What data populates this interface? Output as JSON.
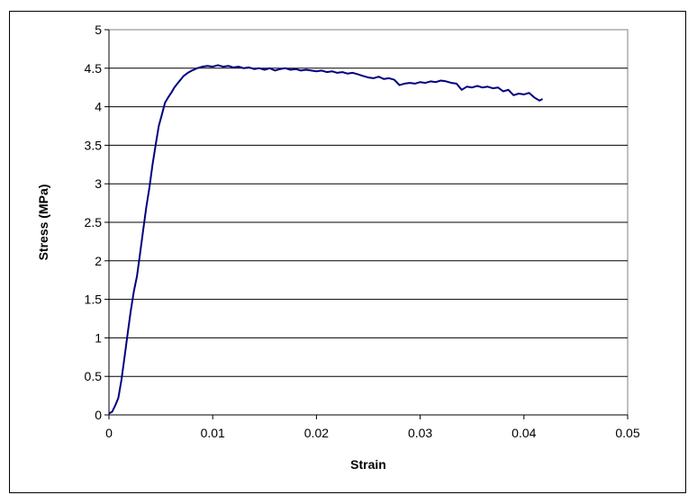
{
  "chart_data": {
    "type": "line",
    "title": "",
    "xlabel": "Strain",
    "ylabel": "Stress (MPa)",
    "xlim": [
      0,
      0.05
    ],
    "ylim": [
      0,
      5
    ],
    "xticks": [
      0,
      0.01,
      0.02,
      0.03,
      0.04,
      0.05
    ],
    "xtick_labels": [
      "0",
      "0.01",
      "0.02",
      "0.03",
      "0.04",
      "0.05"
    ],
    "yticks": [
      0,
      0.5,
      1,
      1.5,
      2,
      2.5,
      3,
      3.5,
      4,
      4.5,
      5
    ],
    "ytick_labels": [
      "0",
      "0.5",
      "1",
      "1.5",
      "2",
      "2.5",
      "3",
      "3.5",
      "4",
      "4.5",
      "5"
    ],
    "grid": "horizontal",
    "legend": "none",
    "plot_background": "#ffffff",
    "series": [
      {
        "color": "#000080",
        "x": [
          0,
          0.0003,
          0.0006,
          0.0009,
          0.0012,
          0.0015,
          0.0018,
          0.0021,
          0.0024,
          0.0027,
          0.003,
          0.0033,
          0.0036,
          0.0039,
          0.0042,
          0.0045,
          0.0048,
          0.0051,
          0.0054,
          0.0057,
          0.006,
          0.0063,
          0.0066,
          0.0069,
          0.0072,
          0.0076,
          0.008,
          0.0085,
          0.009,
          0.0095,
          0.01,
          0.0105,
          0.011,
          0.0115,
          0.012,
          0.0125,
          0.013,
          0.0135,
          0.014,
          0.0145,
          0.015,
          0.0155,
          0.016,
          0.0165,
          0.017,
          0.0175,
          0.018,
          0.0185,
          0.019,
          0.0195,
          0.02,
          0.0205,
          0.021,
          0.0215,
          0.022,
          0.0225,
          0.023,
          0.0235,
          0.024,
          0.0245,
          0.025,
          0.0255,
          0.026,
          0.0265,
          0.027,
          0.0275,
          0.028,
          0.0285,
          0.029,
          0.0295,
          0.03,
          0.0305,
          0.031,
          0.0315,
          0.032,
          0.0325,
          0.033,
          0.0335,
          0.034,
          0.0345,
          0.035,
          0.0355,
          0.036,
          0.0365,
          0.037,
          0.0375,
          0.038,
          0.0385,
          0.039,
          0.0395,
          0.04,
          0.0405,
          0.041,
          0.0415,
          0.0418
        ],
        "y": [
          0.02,
          0.04,
          0.12,
          0.22,
          0.45,
          0.75,
          1.05,
          1.35,
          1.6,
          1.8,
          2.1,
          2.4,
          2.7,
          2.95,
          3.25,
          3.5,
          3.75,
          3.9,
          4.05,
          4.12,
          4.18,
          4.25,
          4.3,
          4.35,
          4.4,
          4.44,
          4.47,
          4.5,
          4.52,
          4.53,
          4.52,
          4.54,
          4.52,
          4.53,
          4.51,
          4.52,
          4.5,
          4.51,
          4.49,
          4.5,
          4.48,
          4.5,
          4.47,
          4.49,
          4.5,
          4.48,
          4.49,
          4.47,
          4.48,
          4.47,
          4.46,
          4.47,
          4.45,
          4.46,
          4.44,
          4.45,
          4.43,
          4.44,
          4.42,
          4.4,
          4.38,
          4.37,
          4.39,
          4.36,
          4.37,
          4.35,
          4.28,
          4.3,
          4.31,
          4.3,
          4.32,
          4.31,
          4.33,
          4.32,
          4.34,
          4.33,
          4.31,
          4.3,
          4.22,
          4.26,
          4.25,
          4.27,
          4.25,
          4.26,
          4.24,
          4.25,
          4.2,
          4.22,
          4.15,
          4.17,
          4.16,
          4.18,
          4.12,
          4.08,
          4.1
        ]
      }
    ]
  }
}
